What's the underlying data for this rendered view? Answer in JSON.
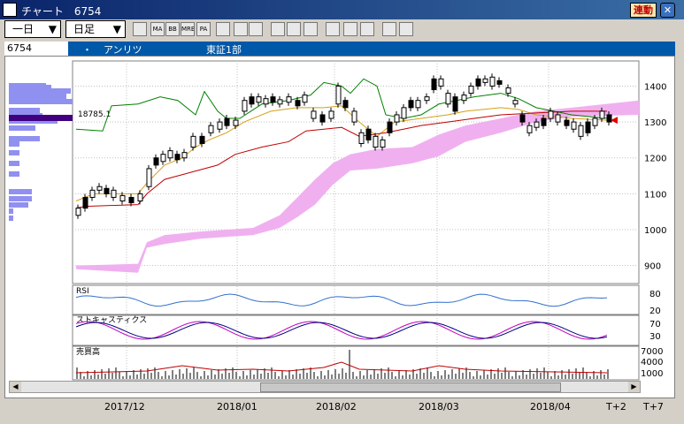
{
  "window": {
    "title": "チャート　6754",
    "link_button": "連動",
    "close_icon": "close-icon"
  },
  "toolbar": {
    "period_select": "一日",
    "interval_select": "日足",
    "buttons": [
      {
        "label": "",
        "icon": "chart-type-icon"
      },
      {
        "label": "MA",
        "icon": "ma-icon"
      },
      {
        "label": "BB",
        "icon": "bollinger-icon"
      },
      {
        "label": "MRE",
        "icon": "mre-icon"
      },
      {
        "label": "PA",
        "icon": "pa-icon"
      },
      {
        "label": "",
        "icon": "line-icon"
      },
      {
        "label": "",
        "icon": "trend-icon"
      },
      {
        "label": "",
        "icon": "spread-icon"
      },
      {
        "label": "",
        "icon": "zoom-icon"
      },
      {
        "label": "",
        "icon": "zoom-reset-icon"
      },
      {
        "label": "",
        "icon": "bars-icon"
      },
      {
        "label": "",
        "icon": "pen-icon"
      },
      {
        "label": "",
        "icon": "cursor-icon"
      },
      {
        "label": "",
        "icon": "eraser-icon"
      },
      {
        "label": "",
        "icon": "settings-icon"
      },
      {
        "label": "",
        "icon": "fibonacci-icon"
      }
    ]
  },
  "info": {
    "code": "6754",
    "dot": "・",
    "name": "アンリツ",
    "market": "東証1部"
  },
  "chart_data": {
    "type": "candlestick",
    "price_axis": {
      "ticks": [
        1400,
        1300,
        1200,
        1100,
        1000,
        900
      ]
    },
    "high_marker": "18785.1",
    "rsi": {
      "label": "RSI",
      "ticks": [
        80,
        20
      ]
    },
    "stochastic": {
      "label": "ストキャスティクス",
      "ticks": [
        70,
        30
      ]
    },
    "volume": {
      "label": "売買高",
      "ticks": [
        7000,
        4000,
        1000
      ]
    },
    "x_labels": [
      "2017/12",
      "2018/01",
      "2018/02",
      "2018/03",
      "2018/04",
      "T+2",
      "T+7"
    ]
  },
  "colors": {
    "cloud": "#f0b0f0",
    "ma_short": "#d4a017",
    "ma_mid": "#008000",
    "ma_long": "#c00000",
    "rsi": "#3070d0",
    "stoch_k": "#c000c0",
    "stoch_d": "#000080",
    "volume_profile": "#9090f0",
    "volume_profile_current": "#400080"
  }
}
